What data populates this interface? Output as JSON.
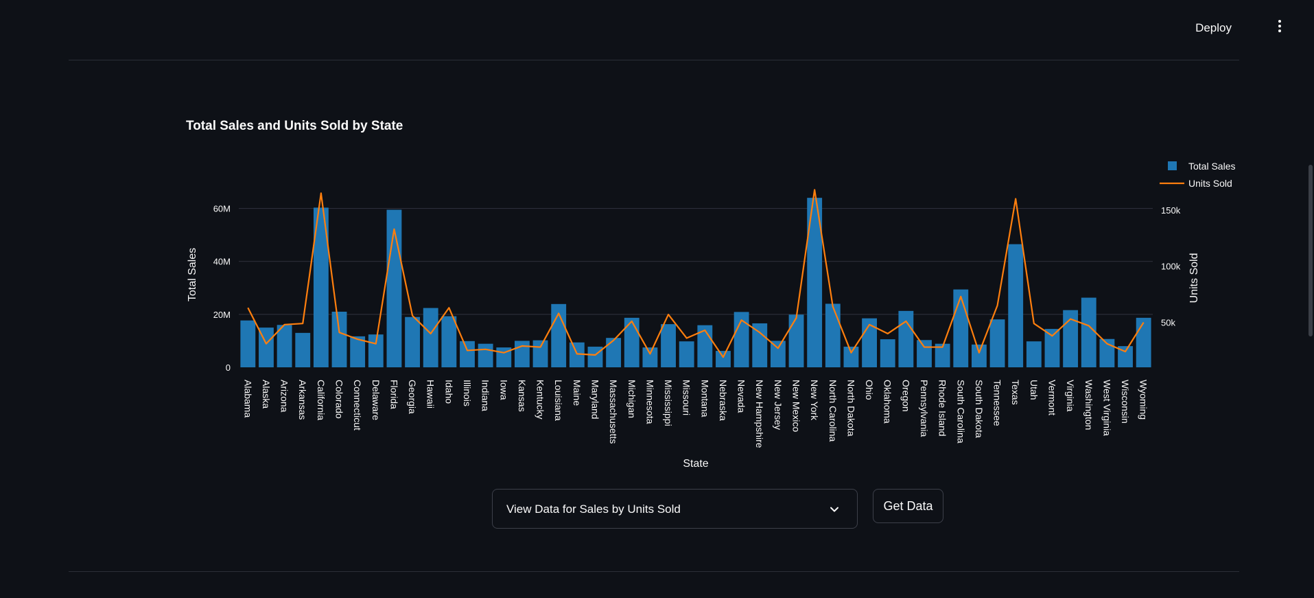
{
  "header": {
    "deploy_label": "Deploy"
  },
  "chart_data": {
    "type": "bar+line",
    "title": "Total Sales and Units Sold by State",
    "xlabel": "State",
    "ylabel": "Total Sales",
    "y2label": "Units Sold",
    "ylim": [
      0,
      70000000
    ],
    "y2lim": [
      10000,
      175000
    ],
    "yticks": [
      "0",
      "20M",
      "40M",
      "60M"
    ],
    "y2ticks": [
      "50k",
      "100k",
      "150k"
    ],
    "legend_position": "top-right",
    "categories": [
      "Alabama",
      "Alaska",
      "Arizona",
      "Arkansas",
      "California",
      "Colorado",
      "Connecticut",
      "Delaware",
      "Florida",
      "Georgia",
      "Hawaii",
      "Idaho",
      "Illinois",
      "Indiana",
      "Iowa",
      "Kansas",
      "Kentucky",
      "Louisiana",
      "Maine",
      "Maryland",
      "Massachusetts",
      "Michigan",
      "Minnesota",
      "Mississippi",
      "Missouri",
      "Montana",
      "Nebraska",
      "Nevada",
      "New Hampshire",
      "New Jersey",
      "New Mexico",
      "New York",
      "North Carolina",
      "North Dakota",
      "Ohio",
      "Oklahoma",
      "Oregon",
      "Pennsylvania",
      "Rhode Island",
      "South Carolina",
      "South Dakota",
      "Tennessee",
      "Texas",
      "Utah",
      "Vermont",
      "Virginia",
      "Washington",
      "West Virginia",
      "Wisconsin",
      "Wyoming"
    ],
    "series": [
      {
        "name": "Total Sales",
        "type": "bar",
        "color": "#1f77b4",
        "values": [
          17700000,
          15000000,
          16000000,
          13000000,
          60300000,
          21000000,
          11700000,
          12400000,
          59500000,
          19000000,
          22400000,
          19300000,
          9900000,
          8900000,
          7500000,
          10000000,
          10200000,
          23900000,
          9400000,
          7800000,
          11100000,
          18700000,
          7500000,
          16300000,
          9800000,
          15900000,
          6200000,
          20900000,
          16600000,
          10000000,
          19900000,
          64000000,
          24000000,
          7800000,
          18500000,
          10600000,
          21300000,
          10300000,
          8900000,
          29400000,
          8600000,
          18100000,
          46500000,
          9800000,
          14500000,
          21600000,
          26300000,
          10700000,
          8000000,
          18700000
        ]
      },
      {
        "name": "Units Sold",
        "type": "line",
        "color": "#ff7f0e",
        "values": [
          63000,
          31000,
          48000,
          49000,
          165000,
          41000,
          35000,
          31000,
          133000,
          56000,
          40000,
          63000,
          25000,
          26000,
          23000,
          29000,
          28000,
          58000,
          22000,
          21000,
          34000,
          51000,
          22000,
          57000,
          36000,
          43000,
          19000,
          52000,
          41000,
          27000,
          54000,
          168000,
          64000,
          23000,
          48000,
          40000,
          51000,
          28000,
          28000,
          73000,
          23000,
          65000,
          160000,
          49000,
          38000,
          53000,
          47000,
          31000,
          24000,
          50000
        ]
      }
    ]
  },
  "controls": {
    "select_value": "View Data for Sales by Units Sold",
    "button_label": "Get Data"
  }
}
